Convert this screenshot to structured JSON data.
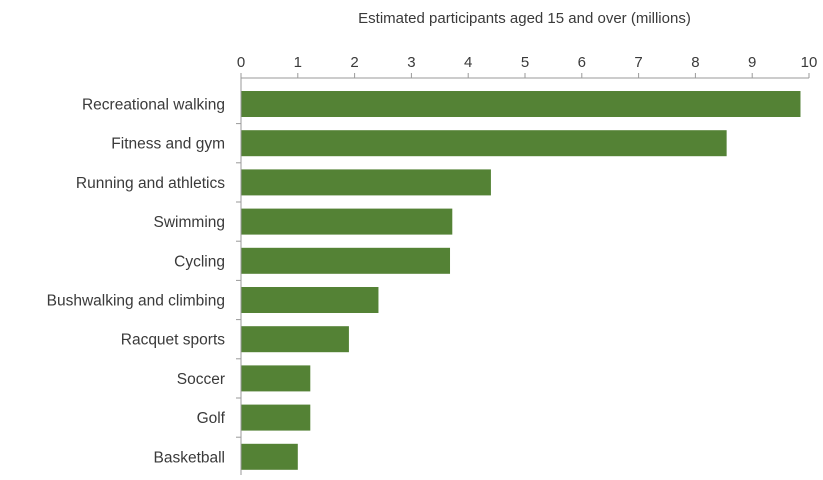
{
  "chart_data": {
    "type": "bar",
    "orientation": "horizontal",
    "xlabel": "Estimated participants aged 15 and over (millions)",
    "categories": [
      "Recreational walking",
      "Fitness and gym",
      "Running and athletics",
      "Swimming",
      "Cycling",
      "Bushwalking and climbing",
      "Racquet sports",
      "Soccer",
      "Golf",
      "Basketball"
    ],
    "values": [
      9.85,
      8.55,
      4.4,
      3.72,
      3.68,
      2.42,
      1.9,
      1.22,
      1.22,
      1.0
    ],
    "xlim": [
      0,
      10
    ],
    "xticks": [
      0,
      1,
      2,
      3,
      4,
      5,
      6,
      7,
      8,
      9,
      10
    ],
    "x_axis_position": "top",
    "grid": false,
    "legend": "none",
    "bar_color": "#548235"
  }
}
